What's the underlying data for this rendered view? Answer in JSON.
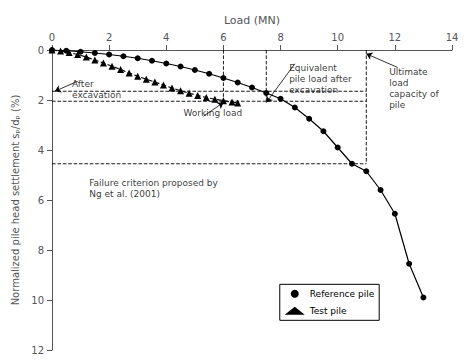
{
  "chart_data": {
    "type": "line",
    "xlabel": "Load (MN)",
    "ylabel": "Normalized pile head settlement sₚ/dₚ (%)",
    "xlim": [
      0,
      14
    ],
    "ylim": [
      12,
      0
    ],
    "xticks": [
      0,
      2,
      4,
      6,
      8,
      10,
      12,
      14
    ],
    "yticks": [
      0,
      2,
      4,
      6,
      8,
      10,
      12
    ],
    "grid": false,
    "legend": "lower right",
    "series": [
      {
        "name": "Reference pile",
        "color": "#000000",
        "marker": "circle",
        "line_style": "solid",
        "x": [
          0,
          0.5,
          1.0,
          1.5,
          2.0,
          2.5,
          3.0,
          3.5,
          4.0,
          4.5,
          5.0,
          5.5,
          6.0,
          6.5,
          7.0,
          7.5,
          8.0,
          8.5,
          9.0,
          9.5,
          10.0,
          10.5,
          11.0,
          11.5,
          12.0,
          12.5,
          13.0
        ],
        "values": [
          0,
          0.03,
          0.07,
          0.12,
          0.18,
          0.25,
          0.33,
          0.43,
          0.54,
          0.66,
          0.8,
          0.95,
          1.12,
          1.3,
          1.5,
          1.72,
          1.95,
          2.3,
          2.75,
          3.25,
          3.9,
          4.55,
          4.85,
          5.6,
          6.55,
          8.55,
          9.9
        ]
      },
      {
        "name": "Test pile",
        "color": "#000000",
        "marker": "triangle",
        "line_style": "dashed",
        "x": [
          0,
          0.3,
          0.6,
          0.9,
          1.2,
          1.5,
          1.8,
          2.1,
          2.4,
          2.7,
          3.0,
          3.3,
          3.6,
          3.9,
          4.2,
          4.5,
          4.8,
          5.1,
          5.4,
          5.7,
          6.0,
          6.3,
          6.5
        ],
        "values": [
          0,
          0.04,
          0.1,
          0.18,
          0.28,
          0.4,
          0.52,
          0.65,
          0.78,
          0.92,
          1.05,
          1.17,
          1.28,
          1.4,
          1.52,
          1.63,
          1.73,
          1.82,
          1.9,
          1.97,
          2.03,
          2.08,
          2.12
        ]
      }
    ],
    "reference_lines": [
      {
        "x": [
          0,
          11.0
        ],
        "y": [
          1.65,
          1.65
        ]
      },
      {
        "x": [
          0,
          11.0
        ],
        "y": [
          2.05,
          2.05
        ]
      },
      {
        "x": [
          0,
          11.0
        ],
        "y": [
          4.55,
          4.55
        ]
      },
      {
        "x": [
          6.0,
          6.0
        ],
        "y": [
          0,
          2.05
        ]
      },
      {
        "x": [
          7.5,
          7.5
        ],
        "y": [
          0,
          2.05
        ]
      },
      {
        "x": [
          11.0,
          11.0
        ],
        "y": [
          0,
          4.55
        ]
      }
    ],
    "annotations": [
      {
        "text": "After\nexcavation",
        "x": 0.7,
        "y": 1.15,
        "arrow_from": [
          0.9,
          1.25
        ],
        "arrow_to": [
          0.1,
          1.65
        ]
      },
      {
        "text": "Working load",
        "x": 4.6,
        "y": 2.75,
        "arrow_from": [
          5.3,
          2.65
        ],
        "arrow_to": [
          6.0,
          2.1
        ]
      },
      {
        "text": "Equivalent\npile load after\nexcavation",
        "x": 8.3,
        "y": 0.48,
        "arrow_from": [
          8.5,
          0.55
        ],
        "arrow_to": [
          7.5,
          2.1
        ]
      },
      {
        "text": "Ultimate\nload\ncapacity of\npile",
        "x": 11.8,
        "y": 0.65,
        "arrow_from": [
          12.1,
          0.7
        ],
        "arrow_to": [
          11.0,
          0.15
        ]
      },
      {
        "text": "Failure criterion proposed by\nNg et al. (2001)",
        "x": 1.3,
        "y": 5.1
      }
    ]
  }
}
